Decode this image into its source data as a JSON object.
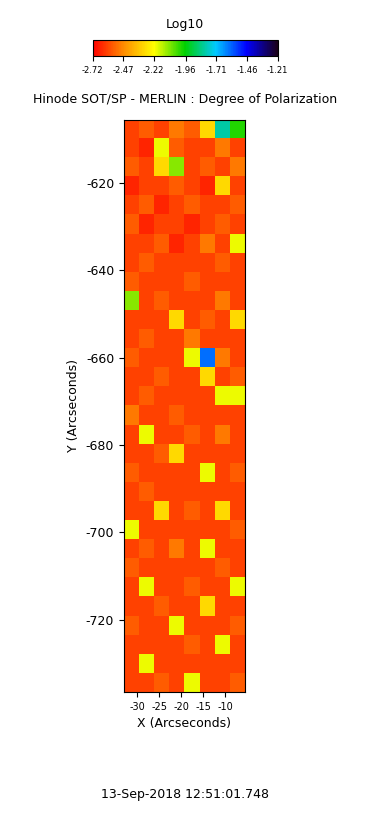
{
  "chart_data": {
    "type": "heatmap",
    "title": "Hinode SOT/SP - MERLIN : Degree of Polarization",
    "x_label": "X (Arcseconds)",
    "y_label": "Y (Arcseconds)",
    "date": "13-Sep-2018 12:51:01.748",
    "xlim": [
      -33,
      -5.5
    ],
    "ylim": [
      -736.5,
      -605.6
    ],
    "xticks": [
      -30,
      -25,
      -20,
      -15,
      -10
    ],
    "yticks": [
      -720,
      -700,
      -680,
      -660,
      -640,
      -620
    ],
    "colorbar_label": "Log10",
    "colorbar_range": [
      -2.72,
      -1.21
    ],
    "colorbar_ticks": [
      -2.72,
      -2.47,
      -2.22,
      -1.96,
      -1.71,
      -1.46,
      -1.21
    ],
    "cells": [
      [
        -2.6,
        -2.55,
        -2.6,
        -2.5,
        -2.55,
        -2.3,
        -1.8,
        -2.0
      ],
      [
        -2.6,
        -2.65,
        -2.2,
        -2.55,
        -2.6,
        -2.6,
        -2.5,
        -2.6
      ],
      [
        -2.55,
        -2.6,
        -2.3,
        -2.1,
        -2.6,
        -2.55,
        -2.6,
        -2.5
      ],
      [
        -2.65,
        -2.6,
        -2.6,
        -2.55,
        -2.6,
        -2.65,
        -2.3,
        -2.6
      ],
      [
        -2.6,
        -2.55,
        -2.65,
        -2.6,
        -2.55,
        -2.6,
        -2.6,
        -2.55
      ],
      [
        -2.55,
        -2.65,
        -2.6,
        -2.6,
        -2.65,
        -2.6,
        -2.55,
        -2.6
      ],
      [
        -2.6,
        -2.6,
        -2.55,
        -2.65,
        -2.6,
        -2.5,
        -2.6,
        -2.2
      ],
      [
        -2.6,
        -2.55,
        -2.6,
        -2.6,
        -2.6,
        -2.6,
        -2.55,
        -2.6
      ],
      [
        -2.55,
        -2.6,
        -2.6,
        -2.6,
        -2.55,
        -2.6,
        -2.6,
        -2.6
      ],
      [
        -2.1,
        -2.6,
        -2.55,
        -2.6,
        -2.6,
        -2.6,
        -2.5,
        -2.6
      ],
      [
        -2.6,
        -2.6,
        -2.6,
        -2.3,
        -2.6,
        -2.55,
        -2.6,
        -2.3
      ],
      [
        -2.6,
        -2.55,
        -2.6,
        -2.6,
        -2.5,
        -2.6,
        -2.6,
        -2.6
      ],
      [
        -2.55,
        -2.6,
        -2.6,
        -2.6,
        -2.2,
        -1.6,
        -2.5,
        -2.6
      ],
      [
        -2.6,
        -2.6,
        -2.55,
        -2.6,
        -2.6,
        -2.3,
        -2.6,
        -2.55
      ],
      [
        -2.6,
        -2.55,
        -2.6,
        -2.6,
        -2.6,
        -2.6,
        -2.2,
        -2.2
      ],
      [
        -2.5,
        -2.6,
        -2.6,
        -2.55,
        -2.6,
        -2.6,
        -2.6,
        -2.6
      ],
      [
        -2.6,
        -2.2,
        -2.6,
        -2.6,
        -2.55,
        -2.6,
        -2.5,
        -2.6
      ],
      [
        -2.6,
        -2.6,
        -2.55,
        -2.3,
        -2.6,
        -2.6,
        -2.6,
        -2.6
      ],
      [
        -2.55,
        -2.6,
        -2.6,
        -2.6,
        -2.6,
        -2.2,
        -2.6,
        -2.55
      ],
      [
        -2.6,
        -2.55,
        -2.6,
        -2.6,
        -2.6,
        -2.6,
        -2.6,
        -2.6
      ],
      [
        -2.6,
        -2.6,
        -2.3,
        -2.6,
        -2.55,
        -2.6,
        -2.3,
        -2.6
      ],
      [
        -2.2,
        -2.6,
        -2.6,
        -2.6,
        -2.6,
        -2.6,
        -2.6,
        -2.55
      ],
      [
        -2.6,
        -2.55,
        -2.6,
        -2.5,
        -2.6,
        -2.2,
        -2.6,
        -2.6
      ],
      [
        -2.55,
        -2.6,
        -2.6,
        -2.6,
        -2.6,
        -2.6,
        -2.55,
        -2.6
      ],
      [
        -2.6,
        -2.2,
        -2.6,
        -2.6,
        -2.55,
        -2.6,
        -2.6,
        -2.2
      ],
      [
        -2.6,
        -2.6,
        -2.55,
        -2.6,
        -2.6,
        -2.3,
        -2.6,
        -2.6
      ],
      [
        -2.55,
        -2.6,
        -2.6,
        -2.2,
        -2.6,
        -2.6,
        -2.6,
        -2.55
      ],
      [
        -2.6,
        -2.6,
        -2.6,
        -2.6,
        -2.55,
        -2.6,
        -2.2,
        -2.6
      ],
      [
        -2.6,
        -2.2,
        -2.6,
        -2.6,
        -2.6,
        -2.6,
        -2.6,
        -2.6
      ],
      [
        -2.6,
        -2.6,
        -2.55,
        -2.6,
        -2.2,
        -2.6,
        -2.6,
        -2.55
      ]
    ]
  }
}
